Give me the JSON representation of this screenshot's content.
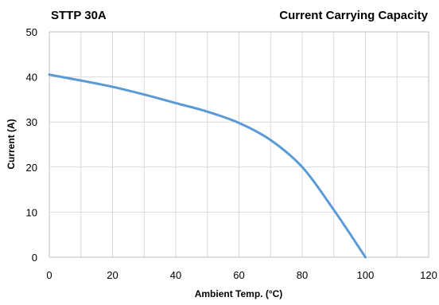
{
  "header": {
    "left_title": "STTP 30A",
    "right_title": "Current Carrying Capacity"
  },
  "colors": {
    "series_line": "#5B9BD5",
    "grid_line": "#D9D9D9",
    "frame": "#BFBFBF"
  },
  "chart_data": {
    "type": "line",
    "title": "Current Carrying Capacity",
    "subtitle": "STTP 30A",
    "xlabel": "Ambient Temp.  (°C)",
    "ylabel": "Current   (A)",
    "xlim": [
      0,
      120
    ],
    "ylim": [
      0,
      50
    ],
    "x_ticks": [
      0,
      10,
      20,
      30,
      40,
      50,
      60,
      70,
      80,
      90,
      100,
      110,
      120
    ],
    "x_tick_labels": [
      0,
      20,
      40,
      60,
      80,
      100,
      120
    ],
    "y_ticks": [
      0,
      10,
      20,
      30,
      40,
      50
    ],
    "y_tick_labels": [
      0,
      10,
      20,
      30,
      40,
      50
    ],
    "grid": true,
    "legend": "none",
    "series": [
      {
        "x": [
          0,
          10,
          20,
          30,
          40,
          50,
          60,
          70,
          80,
          90,
          100
        ],
        "y": [
          40.5,
          39.2,
          37.8,
          36.1,
          34.2,
          32.3,
          29.8,
          26.0,
          20.0,
          10.5,
          0
        ]
      }
    ]
  }
}
